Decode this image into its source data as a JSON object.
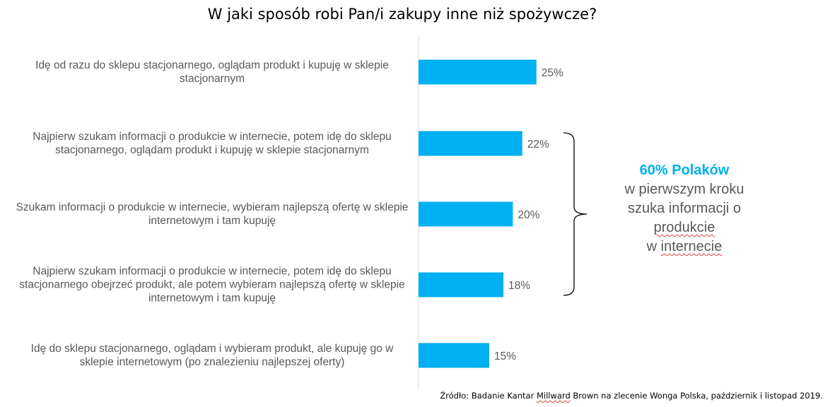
{
  "title": "W jaki sposób robi Pan/i zakupy inne niż spożywcze?",
  "chart_data": {
    "type": "bar",
    "orientation": "horizontal",
    "categories": [
      "Idę od razu do sklepu stacjonarnego, oglądam produkt i kupuję w sklepie stacjonarnym",
      "Najpierw szukam informacji o produkcie w internecie, potem idę do sklepu stacjonarnego, oglądam produkt i kupuję w sklepie stacjonarnym",
      "Szukam informacji o produkcie w internecie, wybieram najlepszą ofertę w sklepie internetowym i tam kupuję",
      "Najpierw szukam informacji o produkcie w internecie, potem idę do sklepu stacjonarnego obejrzeć produkt, ale potem wybieram najlepszą ofertę w sklepie internetowym i tam kupuję",
      "Idę do sklepu stacjonarnego, oglądam i wybieram produkt, ale kupuję go w sklepie internetowym (po znalezieniu najlepszej oferty)"
    ],
    "values": [
      25,
      22,
      20,
      18,
      15
    ],
    "value_labels": [
      "25%",
      "22%",
      "20%",
      "18%",
      "15%"
    ],
    "bar_color": "#00B0F0",
    "grid": false,
    "xlim": [
      0,
      30
    ]
  },
  "callout": {
    "highlight": "60% Polaków",
    "line1": "w pierwszym kroku",
    "line2": "szuka informacji o",
    "line3": "produkcie",
    "line4_prefix": "w ",
    "line4_word": "internecie",
    "highlight_color": "#00B0F0"
  },
  "source": {
    "prefix": "Źródło: Badanie Kantar ",
    "underlined": "Millward",
    "suffix": " Brown na zlecenie Wonga Polska, październik i listopad 2019."
  }
}
